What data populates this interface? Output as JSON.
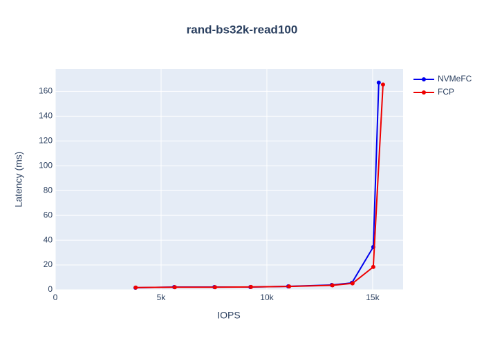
{
  "chart_data": {
    "type": "line",
    "title": "rand-bs32k-read100",
    "x_label": "IOPS",
    "y_label": "Latency (ms)",
    "xlim": [
      0,
      16440
    ],
    "xticks": [
      0,
      {
        "value": 5000,
        "label": "5k"
      },
      {
        "value": 10000,
        "label": "10k"
      },
      {
        "value": 15000,
        "label": "15k"
      }
    ],
    "ylim": [
      0,
      178
    ],
    "yticks": [
      0,
      20,
      40,
      60,
      80,
      100,
      120,
      140,
      160
    ],
    "grid": true,
    "legend": "top-right",
    "series": [
      {
        "name": "NVMeFC",
        "color": "#0000ee",
        "x": [
          3790,
          5620,
          7520,
          9220,
          11010,
          13070,
          14020,
          15030,
          15290
        ],
        "values": [
          1.7,
          2.2,
          2.2,
          2.2,
          2.8,
          3.9,
          5.6,
          34.5,
          167
        ]
      },
      {
        "name": "FCP",
        "color": "#ee0000",
        "x": [
          3800,
          5650,
          7550,
          9250,
          11050,
          13100,
          14050,
          15030,
          15490
        ],
        "values": [
          1.8,
          2.1,
          2.1,
          2.3,
          2.7,
          3.6,
          5.2,
          18.4,
          165.5
        ]
      }
    ]
  }
}
